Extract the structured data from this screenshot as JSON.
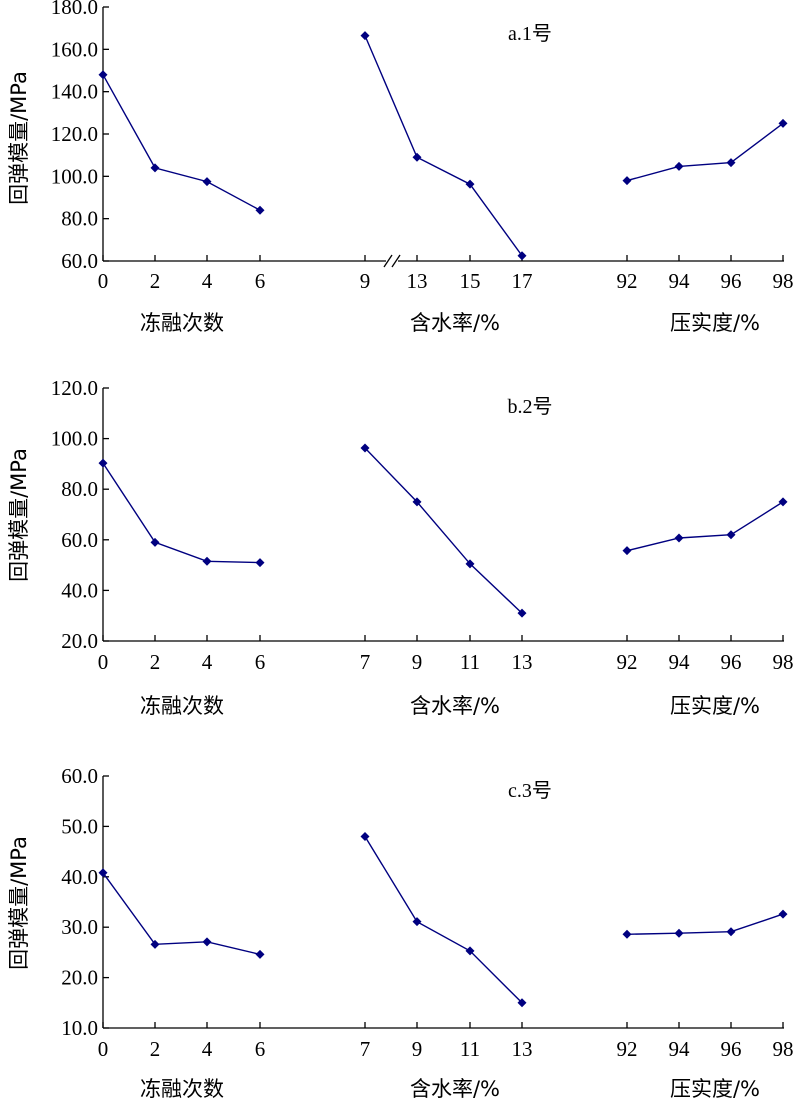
{
  "style": {
    "series_color": "#000080",
    "axis_color": "#000000"
  },
  "chart_data": [
    {
      "type": "line",
      "title": "a.1号",
      "ylabel": "回弹模量/MPa",
      "ylim": [
        60,
        180
      ],
      "yticks": [
        "60.0",
        "80.0",
        "100.0",
        "120.0",
        "140.0",
        "160.0",
        "180.0"
      ],
      "axis_break": true,
      "groups": [
        {
          "label": "冻融次数",
          "x": [
            "0",
            "2",
            "4",
            "6"
          ],
          "values": [
            148,
            104,
            97.5,
            84
          ]
        },
        {
          "label": "含水率/%",
          "x": [
            "9",
            "13",
            "15",
            "17"
          ],
          "values": [
            166.5,
            109,
            96.3,
            62.5
          ]
        },
        {
          "label": "压实度/%",
          "x": [
            "92",
            "94",
            "96",
            "98"
          ],
          "values": [
            98,
            104.7,
            106.5,
            125
          ]
        }
      ]
    },
    {
      "type": "line",
      "title": "b.2号",
      "ylabel": "回弹模量/MPa",
      "ylim": [
        20,
        120
      ],
      "yticks": [
        "20.0",
        "40.0",
        "60.0",
        "80.0",
        "100.0",
        "120.0"
      ],
      "axis_break": false,
      "groups": [
        {
          "label": "冻融次数",
          "x": [
            "0",
            "2",
            "4",
            "6"
          ],
          "values": [
            90.3,
            59,
            51.5,
            51
          ]
        },
        {
          "label": "含水率/%",
          "x": [
            "7",
            "9",
            "11",
            "13"
          ],
          "values": [
            96.3,
            75,
            50.5,
            31
          ]
        },
        {
          "label": "压实度/%",
          "x": [
            "92",
            "94",
            "96",
            "98"
          ],
          "values": [
            55.7,
            60.7,
            62,
            75
          ]
        }
      ]
    },
    {
      "type": "line",
      "title": "c.3号",
      "ylabel": "回弹模量/MPa",
      "ylim": [
        10,
        60
      ],
      "yticks": [
        "10.0",
        "20.0",
        "30.0",
        "40.0",
        "50.0",
        "60.0"
      ],
      "axis_break": false,
      "groups": [
        {
          "label": "冻融次数",
          "x": [
            "0",
            "2",
            "4",
            "6"
          ],
          "values": [
            40.8,
            26.6,
            27.1,
            24.6
          ]
        },
        {
          "label": "含水率/%",
          "x": [
            "7",
            "9",
            "11",
            "13"
          ],
          "values": [
            48,
            31.1,
            25.3,
            15
          ]
        },
        {
          "label": "压实度/%",
          "x": [
            "92",
            "94",
            "96",
            "98"
          ],
          "values": [
            28.6,
            28.8,
            29.1,
            32.6
          ]
        }
      ]
    }
  ]
}
